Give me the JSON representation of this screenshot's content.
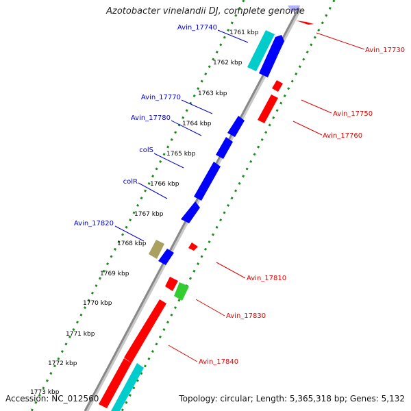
{
  "title": "Azotobacter vinelandii DJ, complete genome",
  "footer": {
    "accession": "Accession: NC_012560",
    "topology": "Topology: circular; Length: 5,365,318 bp; Genes: 5,132"
  },
  "colors": {
    "forward_cds": "#0000ff",
    "reverse_cds": "#ff0000",
    "rna": "#00cccc",
    "tan_feature": "#aaa060",
    "green_feature": "#33cc33",
    "backbone": "#888888",
    "forward_label": "#0000cc",
    "reverse_label": "#dd0000",
    "tick_marks": "#1a8a1a"
  },
  "ruler": [
    "1761 kbp",
    "1762 kbp",
    "1763 kbp",
    "1764 kbp",
    "1765 kbp",
    "1766 kbp",
    "1767 kbp",
    "1768 kbp",
    "1769 kbp",
    "1770 kbp",
    "1771 kbp",
    "1772 kbp",
    "1773 kbp"
  ],
  "forward_labels": [
    "Avin_17740",
    "Avin_17770",
    "Avin_17780",
    "colS",
    "colR",
    "Avin_17820"
  ],
  "reverse_labels": [
    "Avin_17730",
    "Avin_17750",
    "Avin_17760",
    "Avin_17810",
    "Avin_17830",
    "Avin_17840"
  ]
}
